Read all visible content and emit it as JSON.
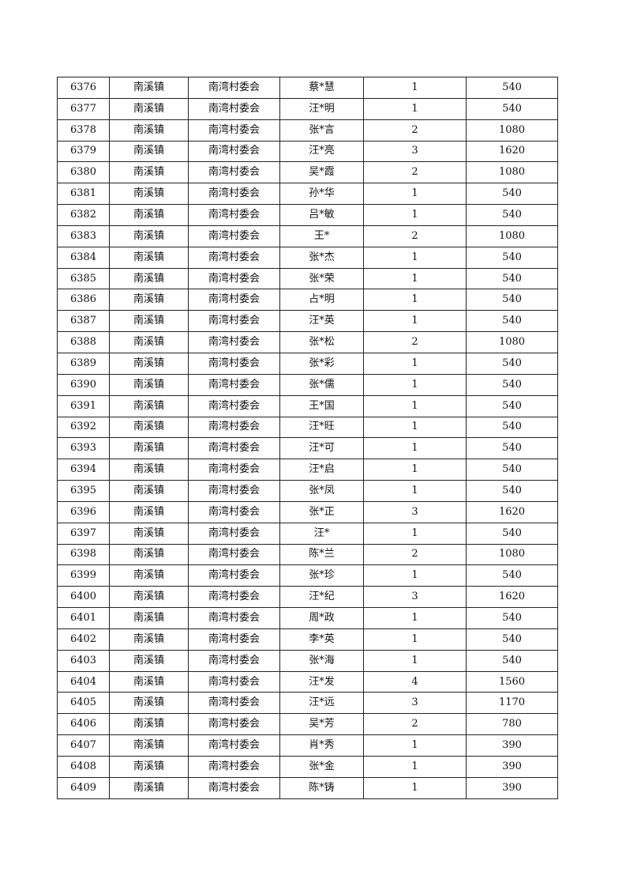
{
  "rows": [
    [
      "6376",
      "南溪镇",
      "南湾村委会",
      "蔡*慧",
      "1",
      "540"
    ],
    [
      "6377",
      "南溪镇",
      "南湾村委会",
      "汪*明",
      "1",
      "540"
    ],
    [
      "6378",
      "南溪镇",
      "南湾村委会",
      "张*言",
      "2",
      "1080"
    ],
    [
      "6379",
      "南溪镇",
      "南湾村委会",
      "汪*亮",
      "3",
      "1620"
    ],
    [
      "6380",
      "南溪镇",
      "南湾村委会",
      "吴*霞",
      "2",
      "1080"
    ],
    [
      "6381",
      "南溪镇",
      "南湾村委会",
      "孙*华",
      "1",
      "540"
    ],
    [
      "6382",
      "南溪镇",
      "南湾村委会",
      "吕*敏",
      "1",
      "540"
    ],
    [
      "6383",
      "南溪镇",
      "南湾村委会",
      "王*",
      "2",
      "1080"
    ],
    [
      "6384",
      "南溪镇",
      "南湾村委会",
      "张*杰",
      "1",
      "540"
    ],
    [
      "6385",
      "南溪镇",
      "南湾村委会",
      "张*荣",
      "1",
      "540"
    ],
    [
      "6386",
      "南溪镇",
      "南湾村委会",
      "占*明",
      "1",
      "540"
    ],
    [
      "6387",
      "南溪镇",
      "南湾村委会",
      "汪*英",
      "1",
      "540"
    ],
    [
      "6388",
      "南溪镇",
      "南湾村委会",
      "张*松",
      "2",
      "1080"
    ],
    [
      "6389",
      "南溪镇",
      "南湾村委会",
      "张*彩",
      "1",
      "540"
    ],
    [
      "6390",
      "南溪镇",
      "南湾村委会",
      "张*儒",
      "1",
      "540"
    ],
    [
      "6391",
      "南溪镇",
      "南湾村委会",
      "王*国",
      "1",
      "540"
    ],
    [
      "6392",
      "南溪镇",
      "南湾村委会",
      "汪*旺",
      "1",
      "540"
    ],
    [
      "6393",
      "南溪镇",
      "南湾村委会",
      "汪*可",
      "1",
      "540"
    ],
    [
      "6394",
      "南溪镇",
      "南湾村委会",
      "汪*启",
      "1",
      "540"
    ],
    [
      "6395",
      "南溪镇",
      "南湾村委会",
      "张*凤",
      "1",
      "540"
    ],
    [
      "6396",
      "南溪镇",
      "南湾村委会",
      "张*正",
      "3",
      "1620"
    ],
    [
      "6397",
      "南溪镇",
      "南湾村委会",
      "汪*",
      "1",
      "540"
    ],
    [
      "6398",
      "南溪镇",
      "南湾村委会",
      "陈*兰",
      "2",
      "1080"
    ],
    [
      "6399",
      "南溪镇",
      "南湾村委会",
      "张*珍",
      "1",
      "540"
    ],
    [
      "6400",
      "南溪镇",
      "南湾村委会",
      "汪*纪",
      "3",
      "1620"
    ],
    [
      "6401",
      "南溪镇",
      "南湾村委会",
      "周*政",
      "1",
      "540"
    ],
    [
      "6402",
      "南溪镇",
      "南湾村委会",
      "李*英",
      "1",
      "540"
    ],
    [
      "6403",
      "南溪镇",
      "南湾村委会",
      "张*海",
      "1",
      "540"
    ],
    [
      "6404",
      "南溪镇",
      "南湾村委会",
      "汪*发",
      "4",
      "1560"
    ],
    [
      "6405",
      "南溪镇",
      "南湾村委会",
      "汪*远",
      "3",
      "1170"
    ],
    [
      "6406",
      "南溪镇",
      "南湾村委会",
      "吴*芳",
      "2",
      "780"
    ],
    [
      "6407",
      "南溪镇",
      "南湾村委会",
      "肖*秀",
      "1",
      "390"
    ],
    [
      "6408",
      "南溪镇",
      "南湾村委会",
      "张*金",
      "1",
      "390"
    ],
    [
      "6409",
      "南溪镇",
      "南湾村委会",
      "陈*铸",
      "1",
      "390"
    ]
  ]
}
